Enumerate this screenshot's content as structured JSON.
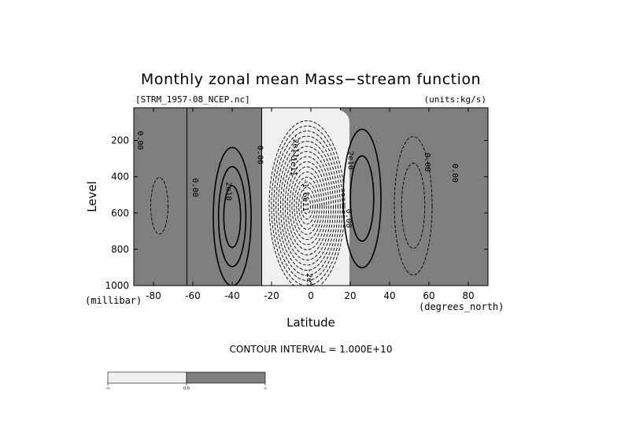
{
  "chart_data": {
    "type": "heatmap",
    "title": "Monthly zonal mean Mass−stream function",
    "source_label": "[STRM_1957-08_NCEP.nc]",
    "units_label": "(units:kg/s)",
    "xlabel": "Latitude",
    "x_units_label": "(degrees_north)",
    "ylabel": "Level",
    "y_units_label": "(millibar)",
    "x_ticks": [
      {
        "value": -80,
        "label": "-80"
      },
      {
        "value": -60,
        "label": "-60"
      },
      {
        "value": -40,
        "label": "-40"
      },
      {
        "value": -20,
        "label": "-20"
      },
      {
        "value": 0,
        "label": "0"
      },
      {
        "value": 20,
        "label": "20"
      },
      {
        "value": 40,
        "label": "40"
      },
      {
        "value": 60,
        "label": "60"
      },
      {
        "value": 80,
        "label": "80"
      }
    ],
    "y_ticks": [
      {
        "value": 200,
        "label": "200"
      },
      {
        "value": 400,
        "label": "400"
      },
      {
        "value": 600,
        "label": "600"
      },
      {
        "value": 800,
        "label": "800"
      },
      {
        "value": 1000,
        "label": "1000"
      }
    ],
    "xlim": [
      -90,
      90
    ],
    "ylim": [
      1000,
      20
    ],
    "contour_interval_label": "CONTOUR INTERVAL = 1.000E+10",
    "colorbar": {
      "ticks": [
        "-∞",
        "0.0",
        "∞"
      ],
      "colors": [
        "#f0f0f0",
        "#7f7f7f"
      ]
    },
    "colors": {
      "negative": "#f0f0f0",
      "positive": "#7f7f7f",
      "line": "#000000"
    },
    "regions": [
      {
        "sign": "positive",
        "lat_min": -90,
        "lat_max": -63,
        "p_top": 20,
        "p_bottom": 1000
      },
      {
        "sign": "positive",
        "lat_min": -63,
        "lat_max": -25,
        "p_top": 20,
        "p_bottom": 1000
      },
      {
        "sign": "positive",
        "lat_min": 15,
        "lat_max": 90,
        "p_top": 20,
        "p_bottom": 1000
      }
    ],
    "cells": [
      {
        "sign": "positive",
        "lat": -40,
        "p": 620,
        "count": 3
      },
      {
        "sign": "negative",
        "lat": -2,
        "p": 560,
        "count": 16
      },
      {
        "sign": "positive",
        "lat": 26,
        "p": 520,
        "count": 2
      },
      {
        "sign": "negative",
        "lat": 52,
        "p": 560,
        "count": 2
      },
      {
        "sign": "negative",
        "lat": -77,
        "p": 560,
        "count": 1
      }
    ],
    "contour_labels": [
      {
        "text": "2e10",
        "lat": -43,
        "p": 480
      },
      {
        "text": "0.00",
        "lat": -60,
        "p": 460
      },
      {
        "text": "0.00",
        "lat": -27,
        "p": 280
      },
      {
        "text": "0.00",
        "lat": -88,
        "p": 200
      },
      {
        "text": "-1.6e11",
        "lat": -4,
        "p": 500
      },
      {
        "text": "-1e11",
        "lat": -10,
        "p": 330
      },
      {
        "text": "-2e11",
        "lat": -9,
        "p": 230
      },
      {
        "text": "2e10",
        "lat": 19,
        "p": 310
      },
      {
        "text": "0.00",
        "lat": 18,
        "p": 630
      },
      {
        "text": "-2e10",
        "lat": -2,
        "p": 970
      },
      {
        "text": "0.00",
        "lat": 58,
        "p": 320
      },
      {
        "text": "0.00",
        "lat": 72,
        "p": 380
      },
      {
        "text": "0.00",
        "lat": 90,
        "p": 300
      }
    ]
  }
}
